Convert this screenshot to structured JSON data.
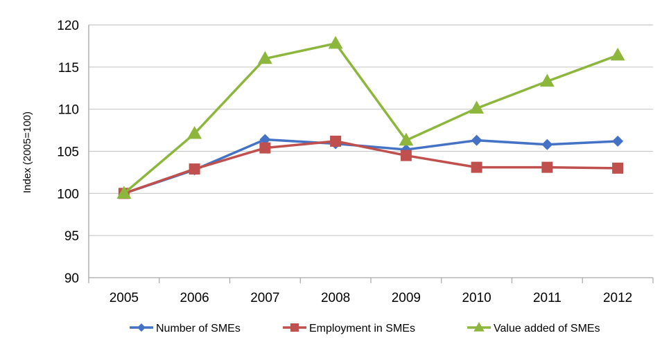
{
  "chart_data": {
    "type": "line",
    "title": "",
    "xlabel": "",
    "ylabel": "Index (2005=100)",
    "categories": [
      "2005",
      "2006",
      "2007",
      "2008",
      "2009",
      "2010",
      "2011",
      "2012"
    ],
    "ylim": [
      90,
      120
    ],
    "yticks": [
      90,
      95,
      100,
      105,
      110,
      115,
      120
    ],
    "grid": true,
    "legend_position": "bottom",
    "series": [
      {
        "name": "Number of SMEs",
        "values": [
          100,
          102.8,
          106.4,
          105.9,
          105.2,
          106.3,
          105.8,
          106.2
        ],
        "color": "#4472C4",
        "marker": "diamond"
      },
      {
        "name": "Employment in SMEs",
        "values": [
          100,
          102.9,
          105.4,
          106.2,
          104.5,
          103.1,
          103.1,
          103.0
        ],
        "color": "#C0504D",
        "marker": "square"
      },
      {
        "name": "Value added of SMEs",
        "values": [
          100,
          107.1,
          116.0,
          117.8,
          106.3,
          110.1,
          113.3,
          116.4
        ],
        "color": "#8DB63C",
        "marker": "triangle"
      }
    ]
  }
}
